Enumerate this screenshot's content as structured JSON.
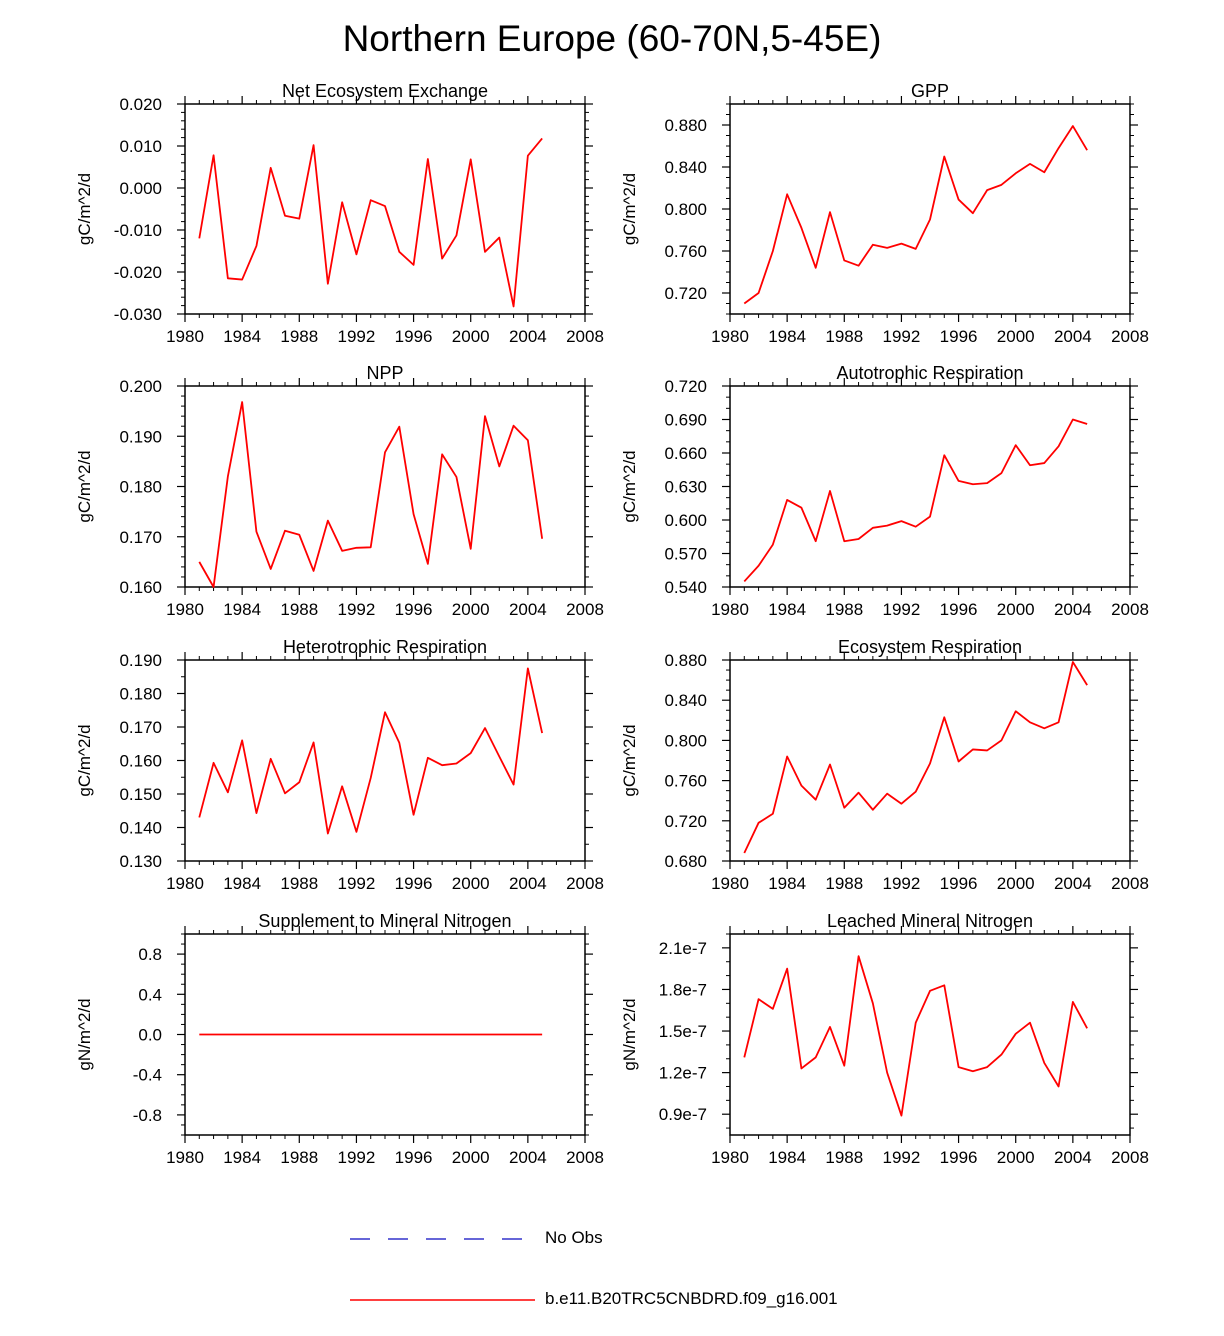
{
  "title": "Northern Europe (60-70N,5-45E)",
  "colors": {
    "model": "#ff0000",
    "obs": "#3333cc",
    "axis": "#000000"
  },
  "legend": {
    "obs_label": "No Obs",
    "model_label": "b.e11.B20TRC5CNBDRD.f09_g16.001"
  },
  "chart_data": [
    {
      "type": "line",
      "title": "Net Ecosystem Exchange",
      "ylabel": "gC/m^2/d",
      "xlim": [
        1980,
        2008
      ],
      "ylim": [
        -0.03,
        0.02
      ],
      "xticks": [
        1980,
        1984,
        1988,
        1992,
        1996,
        2000,
        2004,
        2008
      ],
      "xtick_labels": [
        "1980",
        "1984",
        "1988",
        "1992",
        "1996",
        "2000",
        "2004",
        "2008"
      ],
      "yticks": [
        -0.03,
        -0.02,
        -0.01,
        0.0,
        0.01,
        0.02
      ],
      "ytick_labels": [
        "-0.030",
        "-0.020",
        "-0.010",
        "0.000",
        "0.010",
        "0.020"
      ],
      "yminor": 4,
      "x": [
        1981,
        1982,
        1983,
        1984,
        1985,
        1986,
        1987,
        1988,
        1989,
        1990,
        1991,
        1992,
        1993,
        1994,
        1995,
        1996,
        1997,
        1998,
        1999,
        2000,
        2001,
        2002,
        2003,
        2004,
        2005
      ],
      "series": [
        {
          "values": [
            -0.012,
            0.0078,
            -0.0215,
            -0.0218,
            -0.0138,
            0.0048,
            -0.0066,
            -0.0073,
            0.0102,
            -0.0228,
            -0.0034,
            -0.0158,
            -0.0029,
            -0.0043,
            -0.0152,
            -0.0183,
            0.0069,
            -0.0168,
            -0.0113,
            0.0068,
            -0.0152,
            -0.0118,
            -0.0282,
            0.0077,
            0.0118
          ]
        }
      ]
    },
    {
      "type": "line",
      "title": "GPP",
      "ylabel": "gC/m^2/d",
      "xlim": [
        1980,
        2008
      ],
      "ylim": [
        0.7,
        0.9
      ],
      "xticks": [
        1980,
        1984,
        1988,
        1992,
        1996,
        2000,
        2004,
        2008
      ],
      "xtick_labels": [
        "1980",
        "1984",
        "1988",
        "1992",
        "1996",
        "2000",
        "2004",
        "2008"
      ],
      "yticks": [
        0.72,
        0.76,
        0.8,
        0.84,
        0.88
      ],
      "ytick_labels": [
        "0.720",
        "0.760",
        "0.800",
        "0.840",
        "0.880"
      ],
      "yminor": 3,
      "x": [
        1981,
        1982,
        1983,
        1984,
        1985,
        1986,
        1987,
        1988,
        1989,
        1990,
        1991,
        1992,
        1993,
        1994,
        1995,
        1996,
        1997,
        1998,
        1999,
        2000,
        2001,
        2002,
        2003,
        2004,
        2005
      ],
      "series": [
        {
          "values": [
            0.71,
            0.72,
            0.76,
            0.814,
            0.782,
            0.744,
            0.797,
            0.751,
            0.746,
            0.766,
            0.763,
            0.767,
            0.762,
            0.79,
            0.85,
            0.809,
            0.796,
            0.818,
            0.823,
            0.834,
            0.843,
            0.835,
            0.858,
            0.879,
            0.856
          ]
        }
      ]
    },
    {
      "type": "line",
      "title": "NPP",
      "ylabel": "gC/m^2/d",
      "xlim": [
        1980,
        2008
      ],
      "ylim": [
        0.16,
        0.2
      ],
      "xticks": [
        1980,
        1984,
        1988,
        1992,
        1996,
        2000,
        2004,
        2008
      ],
      "xtick_labels": [
        "1980",
        "1984",
        "1988",
        "1992",
        "1996",
        "2000",
        "2004",
        "2008"
      ],
      "yticks": [
        0.16,
        0.17,
        0.18,
        0.19,
        0.2
      ],
      "ytick_labels": [
        "0.160",
        "0.170",
        "0.180",
        "0.190",
        "0.200"
      ],
      "yminor": 4,
      "x": [
        1981,
        1982,
        1983,
        1984,
        1985,
        1986,
        1987,
        1988,
        1989,
        1990,
        1991,
        1992,
        1993,
        1994,
        1995,
        1996,
        1997,
        1998,
        1999,
        2000,
        2001,
        2002,
        2003,
        2004,
        2005
      ],
      "series": [
        {
          "values": [
            0.165,
            0.16,
            0.182,
            0.1968,
            0.171,
            0.1636,
            0.1712,
            0.1704,
            0.1632,
            0.1732,
            0.1672,
            0.1678,
            0.1679,
            0.1868,
            0.1919,
            0.1745,
            0.1646,
            0.1864,
            0.1819,
            0.1676,
            0.194,
            0.184,
            0.1921,
            0.1892,
            0.1696
          ]
        }
      ]
    },
    {
      "type": "line",
      "title": "Autotrophic Respiration",
      "ylabel": "gC/m^2/d",
      "xlim": [
        1980,
        2008
      ],
      "ylim": [
        0.54,
        0.72
      ],
      "xticks": [
        1980,
        1984,
        1988,
        1992,
        1996,
        2000,
        2004,
        2008
      ],
      "xtick_labels": [
        "1980",
        "1984",
        "1988",
        "1992",
        "1996",
        "2000",
        "2004",
        "2008"
      ],
      "yticks": [
        0.54,
        0.57,
        0.6,
        0.63,
        0.66,
        0.69,
        0.72
      ],
      "ytick_labels": [
        "0.540",
        "0.570",
        "0.600",
        "0.630",
        "0.660",
        "0.690",
        "0.720"
      ],
      "yminor": 2,
      "x": [
        1981,
        1982,
        1983,
        1984,
        1985,
        1986,
        1987,
        1988,
        1989,
        1990,
        1991,
        1992,
        1993,
        1994,
        1995,
        1996,
        1997,
        1998,
        1999,
        2000,
        2001,
        2002,
        2003,
        2004,
        2005
      ],
      "series": [
        {
          "values": [
            0.545,
            0.559,
            0.578,
            0.618,
            0.611,
            0.581,
            0.626,
            0.581,
            0.583,
            0.593,
            0.595,
            0.599,
            0.594,
            0.603,
            0.658,
            0.635,
            0.632,
            0.633,
            0.642,
            0.667,
            0.649,
            0.651,
            0.666,
            0.69,
            0.686
          ]
        }
      ]
    },
    {
      "type": "line",
      "title": "Heterotrophic Respiration",
      "ylabel": "gC/m^2/d",
      "xlim": [
        1980,
        2008
      ],
      "ylim": [
        0.13,
        0.19
      ],
      "xticks": [
        1980,
        1984,
        1988,
        1992,
        1996,
        2000,
        2004,
        2008
      ],
      "xtick_labels": [
        "1980",
        "1984",
        "1988",
        "1992",
        "1996",
        "2000",
        "2004",
        "2008"
      ],
      "yticks": [
        0.13,
        0.14,
        0.15,
        0.16,
        0.17,
        0.18,
        0.19
      ],
      "ytick_labels": [
        "0.130",
        "0.140",
        "0.150",
        "0.160",
        "0.170",
        "0.180",
        "0.190"
      ],
      "yminor": 1,
      "x": [
        1981,
        1982,
        1983,
        1984,
        1985,
        1986,
        1987,
        1988,
        1989,
        1990,
        1991,
        1992,
        1993,
        1994,
        1995,
        1996,
        1997,
        1998,
        1999,
        2000,
        2001,
        2002,
        2003,
        2004,
        2005
      ],
      "series": [
        {
          "values": [
            0.143,
            0.1593,
            0.1505,
            0.166,
            0.1443,
            0.1605,
            0.1502,
            0.1535,
            0.1654,
            0.1382,
            0.1523,
            0.1387,
            0.1548,
            0.1744,
            0.1653,
            0.1438,
            0.1608,
            0.1586,
            0.1591,
            0.1622,
            0.1697,
            0.1612,
            0.1528,
            0.1875,
            0.1682
          ]
        }
      ]
    },
    {
      "type": "line",
      "title": "Ecosystem Respiration",
      "ylabel": "gC/m^2/d",
      "xlim": [
        1980,
        2008
      ],
      "ylim": [
        0.68,
        0.88
      ],
      "xticks": [
        1980,
        1984,
        1988,
        1992,
        1996,
        2000,
        2004,
        2008
      ],
      "xtick_labels": [
        "1980",
        "1984",
        "1988",
        "1992",
        "1996",
        "2000",
        "2004",
        "2008"
      ],
      "yticks": [
        0.68,
        0.72,
        0.76,
        0.8,
        0.84,
        0.88
      ],
      "ytick_labels": [
        "0.680",
        "0.720",
        "0.760",
        "0.800",
        "0.840",
        "0.880"
      ],
      "yminor": 3,
      "x": [
        1981,
        1982,
        1983,
        1984,
        1985,
        1986,
        1987,
        1988,
        1989,
        1990,
        1991,
        1992,
        1993,
        1994,
        1995,
        1996,
        1997,
        1998,
        1999,
        2000,
        2001,
        2002,
        2003,
        2004,
        2005
      ],
      "series": [
        {
          "values": [
            0.688,
            0.718,
            0.727,
            0.784,
            0.755,
            0.741,
            0.776,
            0.733,
            0.748,
            0.731,
            0.747,
            0.737,
            0.749,
            0.777,
            0.823,
            0.779,
            0.791,
            0.79,
            0.8,
            0.829,
            0.818,
            0.812,
            0.818,
            0.878,
            0.855
          ]
        }
      ]
    },
    {
      "type": "line",
      "title": "Supplement to Mineral Nitrogen",
      "ylabel": "gN/m^2/d",
      "xlim": [
        1980,
        2008
      ],
      "ylim": [
        -1.0,
        1.0
      ],
      "xticks": [
        1980,
        1984,
        1988,
        1992,
        1996,
        2000,
        2004,
        2008
      ],
      "xtick_labels": [
        "1980",
        "1984",
        "1988",
        "1992",
        "1996",
        "2000",
        "2004",
        "2008"
      ],
      "yticks": [
        -0.8,
        -0.4,
        0.0,
        0.4,
        0.8
      ],
      "ytick_labels": [
        "-0.8",
        "-0.4",
        "0.0",
        "0.4",
        "0.8"
      ],
      "yminor": 3,
      "x": [
        1981,
        1982,
        1983,
        1984,
        1985,
        1986,
        1987,
        1988,
        1989,
        1990,
        1991,
        1992,
        1993,
        1994,
        1995,
        1996,
        1997,
        1998,
        1999,
        2000,
        2001,
        2002,
        2003,
        2004,
        2005
      ],
      "series": [
        {
          "values": [
            0,
            0,
            0,
            0,
            0,
            0,
            0,
            0,
            0,
            0,
            0,
            0,
            0,
            0,
            0,
            0,
            0,
            0,
            0,
            0,
            0,
            0,
            0,
            0,
            0
          ]
        }
      ]
    },
    {
      "type": "line",
      "title": "Leached Mineral Nitrogen",
      "ylabel": "gN/m^2/d",
      "xlim": [
        1980,
        2008
      ],
      "ylim": [
        7.5e-08,
        2.2e-07
      ],
      "xticks": [
        1980,
        1984,
        1988,
        1992,
        1996,
        2000,
        2004,
        2008
      ],
      "xtick_labels": [
        "1980",
        "1984",
        "1988",
        "1992",
        "1996",
        "2000",
        "2004",
        "2008"
      ],
      "yticks": [
        9e-08,
        1.2e-07,
        1.5e-07,
        1.8e-07,
        2.1e-07
      ],
      "ytick_labels": [
        "0.9e-7",
        "1.2e-7",
        "1.5e-7",
        "1.8e-7",
        "2.1e-7"
      ],
      "yminor": 2,
      "x": [
        1981,
        1982,
        1983,
        1984,
        1985,
        1986,
        1987,
        1988,
        1989,
        1990,
        1991,
        1992,
        1993,
        1994,
        1995,
        1996,
        1997,
        1998,
        1999,
        2000,
        2001,
        2002,
        2003,
        2004,
        2005
      ],
      "series": [
        {
          "values": [
            1.31e-07,
            1.73e-07,
            1.66e-07,
            1.95e-07,
            1.23e-07,
            1.31e-07,
            1.53e-07,
            1.25e-07,
            2.04e-07,
            1.7e-07,
            1.2e-07,
            8.9e-08,
            1.56e-07,
            1.79e-07,
            1.83e-07,
            1.24e-07,
            1.21e-07,
            1.24e-07,
            1.33e-07,
            1.48e-07,
            1.56e-07,
            1.27e-07,
            1.1e-07,
            1.71e-07,
            1.52e-07
          ]
        }
      ]
    }
  ]
}
